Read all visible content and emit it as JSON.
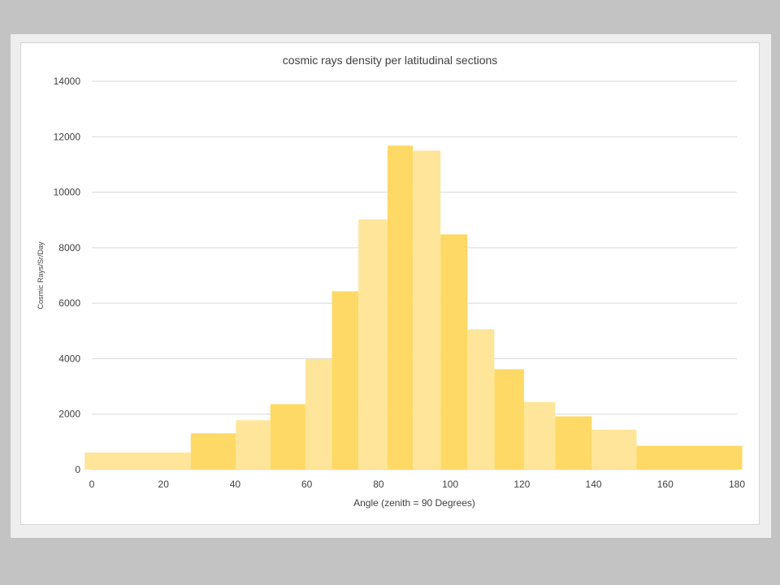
{
  "chart_data": {
    "type": "bar",
    "title": "cosmic rays density per latitudinal sections",
    "xlabel": "Angle (zenith = 90 Degrees)",
    "ylabel": "Cosmic Rays/Sr/Day",
    "xlim": [
      0,
      180
    ],
    "ylim": [
      0,
      14000
    ],
    "x_ticks": [
      "0",
      "20",
      "40",
      "60",
      "80",
      "100",
      "120",
      "140",
      "160",
      "180"
    ],
    "y_ticks": [
      "0",
      "2000",
      "4000",
      "6000",
      "8000",
      "10000",
      "12000",
      "14000"
    ],
    "grid": "horizontal",
    "legend": "none",
    "bins": [
      {
        "start": -2,
        "end": 27.6,
        "value": 620
      },
      {
        "start": 27.6,
        "end": 40.2,
        "value": 1310
      },
      {
        "start": 40.2,
        "end": 49.8,
        "value": 1780
      },
      {
        "start": 49.8,
        "end": 59.6,
        "value": 2360
      },
      {
        "start": 59.6,
        "end": 67.0,
        "value": 3990
      },
      {
        "start": 67.0,
        "end": 74.4,
        "value": 6430
      },
      {
        "start": 74.4,
        "end": 82.5,
        "value": 9020
      },
      {
        "start": 82.5,
        "end": 89.6,
        "value": 11680
      },
      {
        "start": 89.6,
        "end": 97.3,
        "value": 11500
      },
      {
        "start": 97.3,
        "end": 104.8,
        "value": 8480
      },
      {
        "start": 104.8,
        "end": 112.3,
        "value": 5060
      },
      {
        "start": 112.3,
        "end": 120.6,
        "value": 3620
      },
      {
        "start": 120.6,
        "end": 129.3,
        "value": 2440
      },
      {
        "start": 129.3,
        "end": 139.5,
        "value": 1920
      },
      {
        "start": 139.5,
        "end": 152.0,
        "value": 1440
      },
      {
        "start": 152.0,
        "end": 181.5,
        "value": 860
      }
    ],
    "colors": {
      "bar_light": "#fee599",
      "bar_dark": "#ffd966",
      "gridline": "#d9d9d9",
      "text": "#404040"
    }
  }
}
